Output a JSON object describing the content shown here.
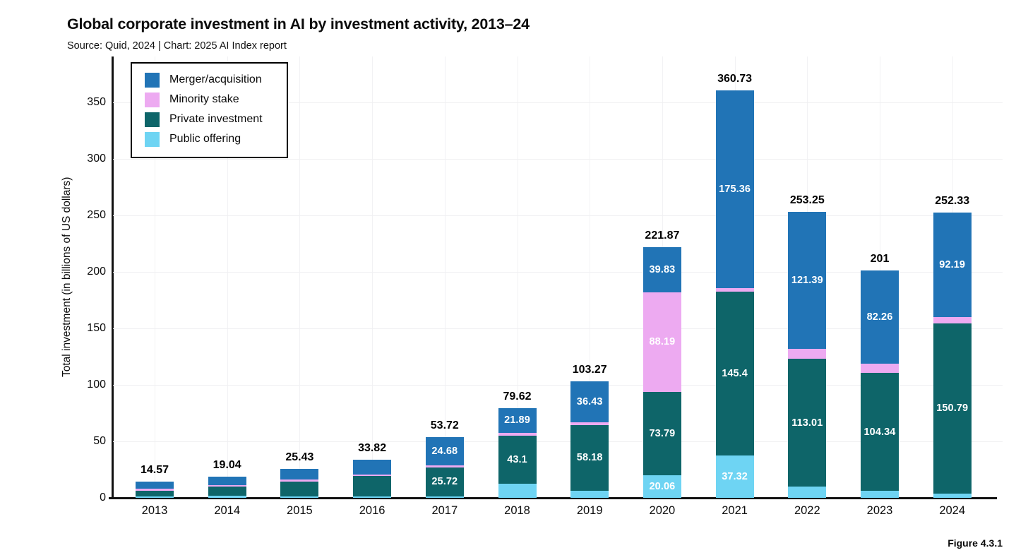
{
  "header": {
    "title": "Global corporate investment in AI by investment activity, 2013–24",
    "subtitle": "Source: Quid, 2024 | Chart: 2025 AI Index report"
  },
  "figure_label": "Figure 4.3.1",
  "legend": {
    "items": [
      {
        "label": "Merger/acquisition",
        "color": "#2174b6"
      },
      {
        "label": "Minority stake",
        "color": "#edaaf1"
      },
      {
        "label": "Private investment",
        "color": "#0e6569"
      },
      {
        "label": "Public offering",
        "color": "#6ed4f3"
      }
    ]
  },
  "chart_data": {
    "type": "bar",
    "stacked": true,
    "title": "Global corporate investment in AI by investment activity, 2013–24",
    "xlabel": "",
    "ylabel": "Total investment (in billions of US dollars)",
    "ylim": [
      0,
      390
    ],
    "yticks": [
      0,
      50,
      100,
      150,
      200,
      250,
      300,
      350
    ],
    "grid": true,
    "legend_position": "upper-left-boxed",
    "categories": [
      "2013",
      "2014",
      "2015",
      "2016",
      "2017",
      "2018",
      "2019",
      "2020",
      "2021",
      "2022",
      "2023",
      "2024"
    ],
    "series": [
      {
        "name": "Public offering",
        "color": "#6ed4f3",
        "values": [
          1.5,
          2.0,
          1.5,
          1.5,
          1.42,
          12.2,
          6.46,
          20.06,
          37.32,
          9.9,
          6.1,
          3.85
        ],
        "labels": [
          null,
          null,
          null,
          null,
          null,
          null,
          null,
          "20.06",
          "37.32",
          null,
          null,
          null
        ]
      },
      {
        "name": "Private investment",
        "color": "#0e6569",
        "values": [
          4.9,
          8.3,
          12.6,
          17.7,
          25.72,
          43.1,
          58.18,
          73.79,
          145.4,
          113.01,
          104.34,
          150.79
        ],
        "labels": [
          null,
          null,
          null,
          null,
          "25.72",
          "43.1",
          "58.18",
          "73.79",
          "145.4",
          "113.01",
          "104.34",
          "150.79"
        ]
      },
      {
        "name": "Minority stake",
        "color": "#edaaf1",
        "values": [
          1.9,
          1.2,
          1.9,
          1.7,
          1.9,
          2.43,
          2.2,
          88.19,
          2.65,
          8.95,
          8.3,
          5.5
        ],
        "labels": [
          null,
          null,
          null,
          null,
          null,
          null,
          null,
          "88.19",
          null,
          null,
          null,
          null
        ]
      },
      {
        "name": "Merger/acquisition",
        "color": "#2174b6",
        "values": [
          6.27,
          7.54,
          9.43,
          12.92,
          24.68,
          21.89,
          36.43,
          39.83,
          175.36,
          121.39,
          82.26,
          92.19
        ],
        "labels": [
          null,
          null,
          null,
          null,
          "24.68",
          "21.89",
          "36.43",
          "39.83",
          "175.36",
          "121.39",
          "82.26",
          "92.19"
        ]
      }
    ],
    "totals": [
      "14.57",
      "19.04",
      "25.43",
      "33.82",
      "53.72",
      "79.62",
      "103.27",
      "221.87",
      "360.73",
      "253.25",
      "201",
      "252.33"
    ]
  }
}
